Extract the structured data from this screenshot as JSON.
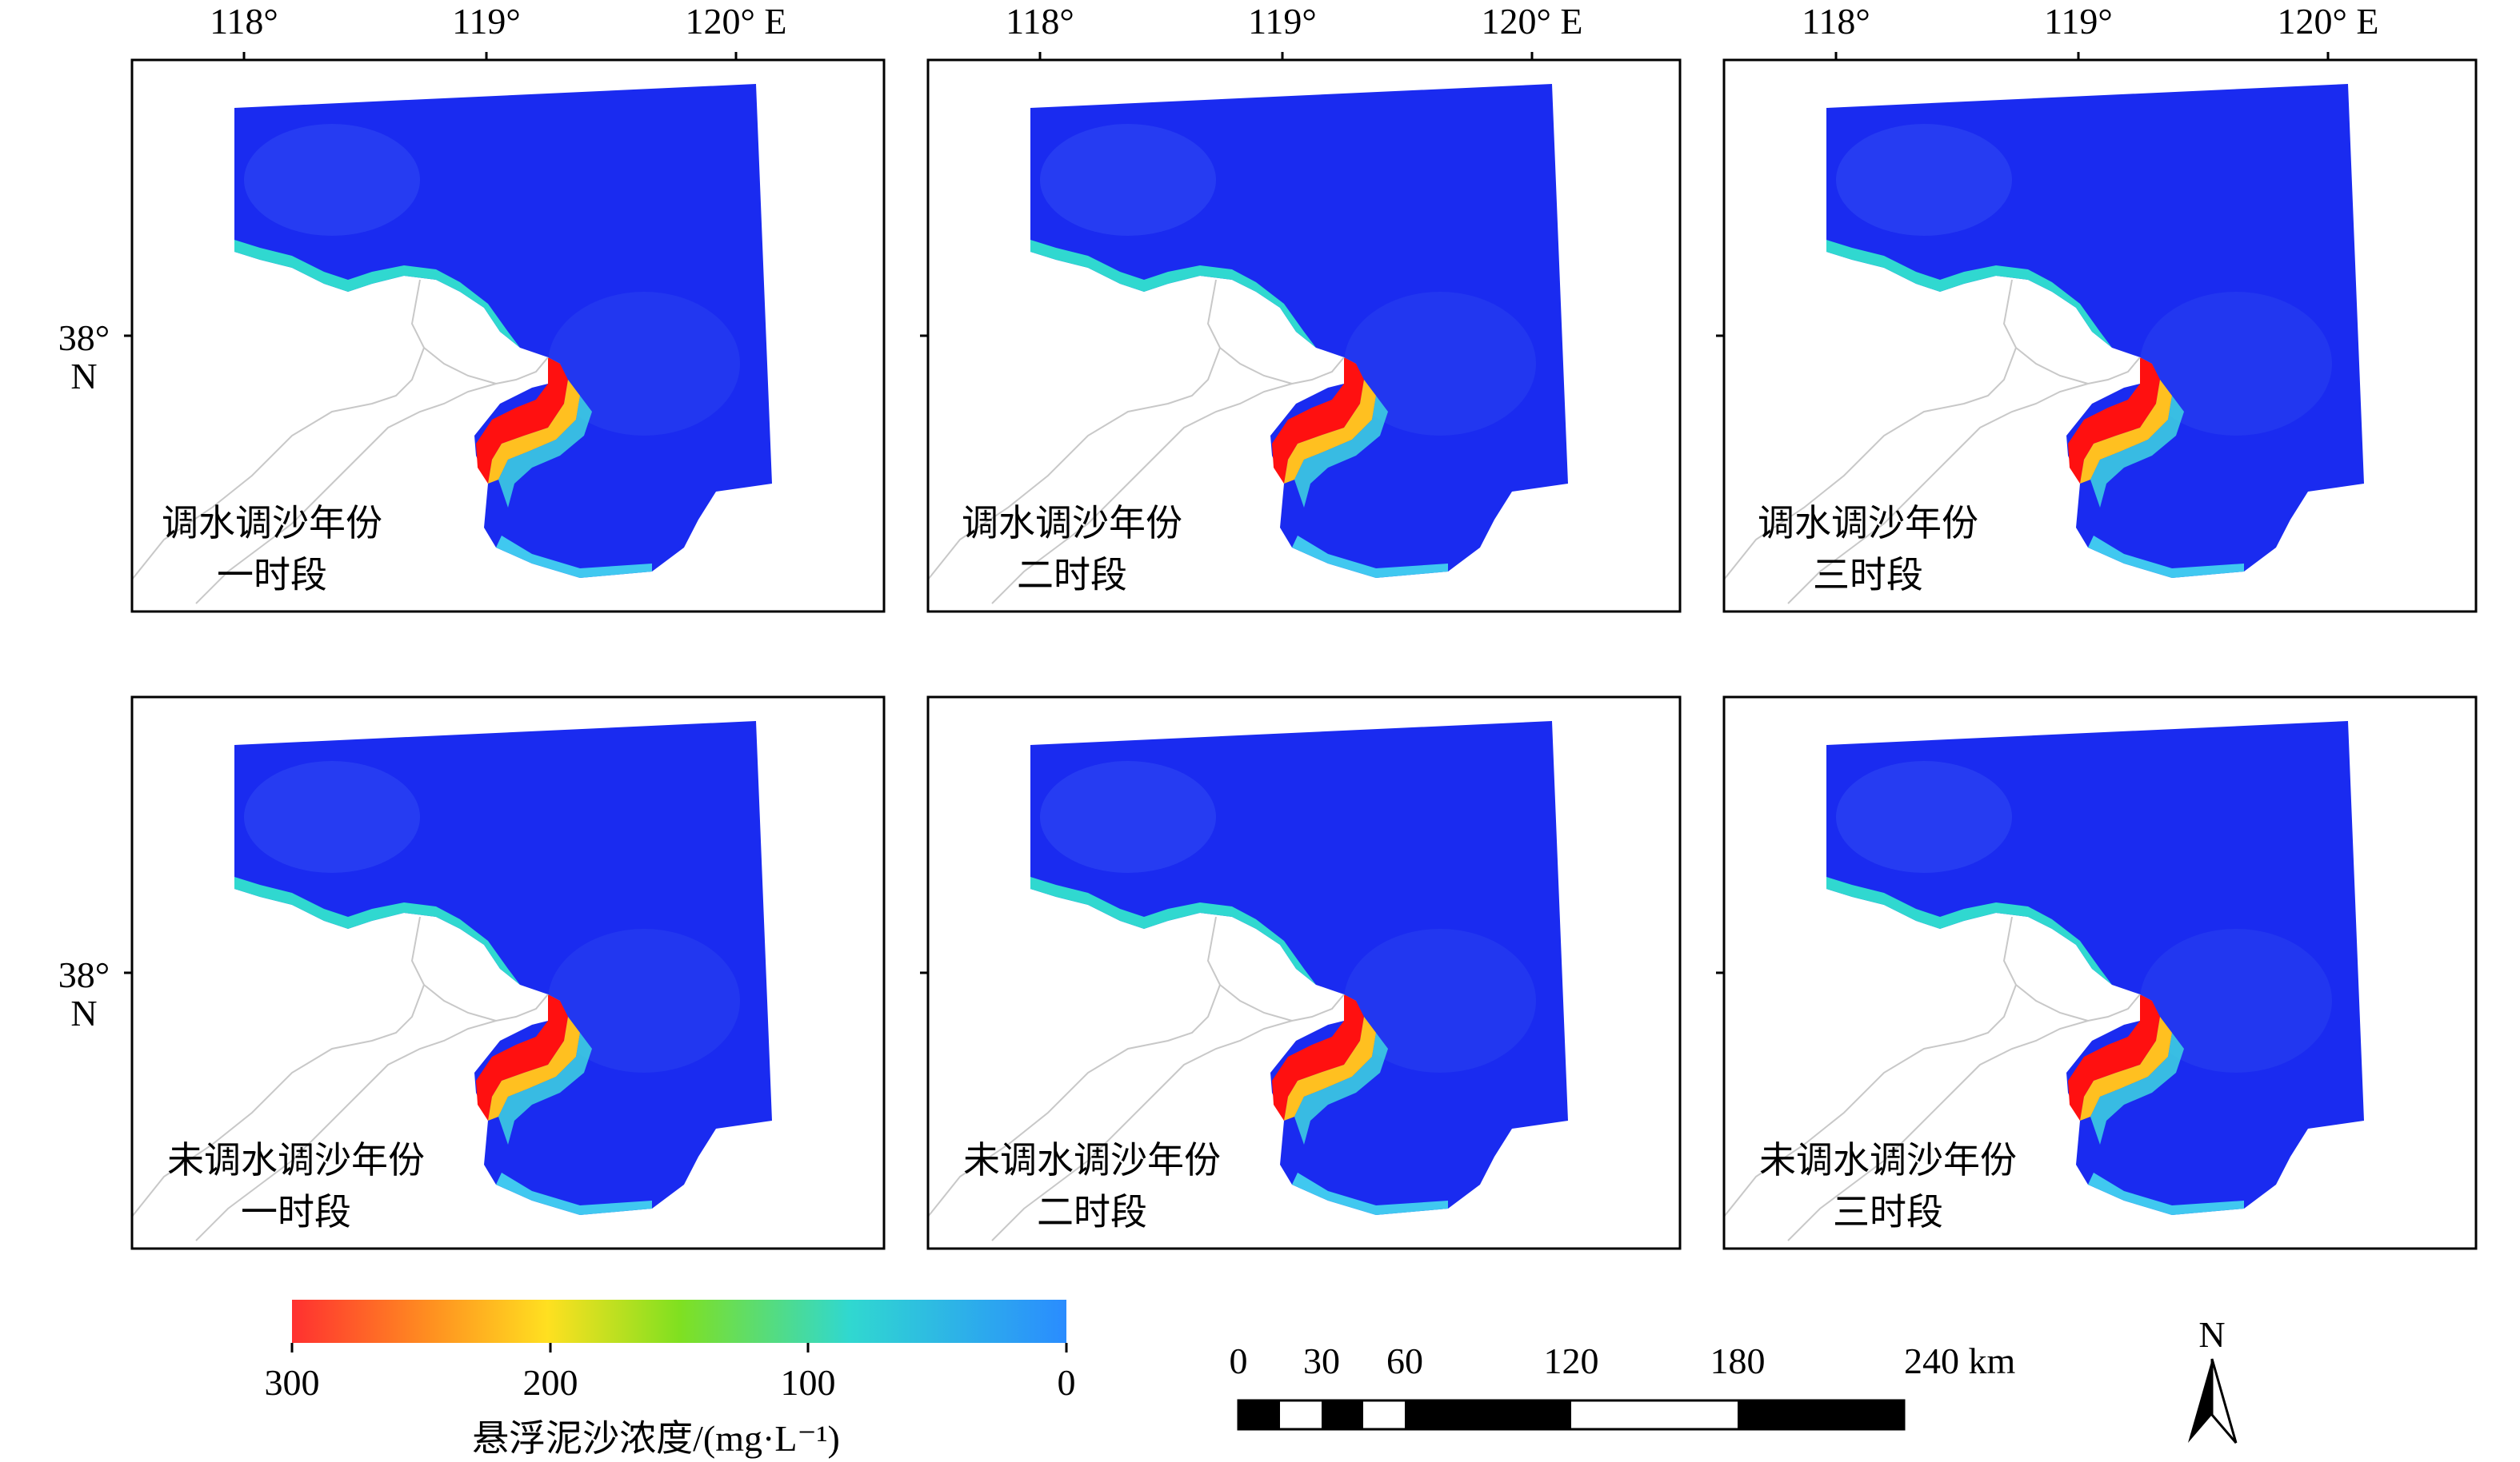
{
  "axes": {
    "lon_ticks": [
      "118°",
      "119°",
      "120° E"
    ],
    "lat_tick": "38°",
    "lat_hemisphere": "N"
  },
  "panels": [
    {
      "line1": "调水调沙年份",
      "line2": "一时段"
    },
    {
      "line1": "调水调沙年份",
      "line2": "二时段"
    },
    {
      "line1": "调水调沙年份",
      "line2": "三时段"
    },
    {
      "line1": "未调水调沙年份",
      "line2": "一时段"
    },
    {
      "line1": "未调水调沙年份",
      "line2": "二时段"
    },
    {
      "line1": "未调水调沙年份",
      "line2": "三时段"
    }
  ],
  "colorbar": {
    "ticks": [
      "300",
      "200",
      "100",
      "0"
    ],
    "title": "悬浮泥沙浓度/(mg·L⁻¹)",
    "colors": [
      "#ff3030",
      "#ff9020",
      "#ffe020",
      "#80e020",
      "#30d8d0",
      "#2a8cff"
    ]
  },
  "scalebar": {
    "labels": [
      "0",
      "30",
      "60",
      "120",
      "180",
      "240 km"
    ]
  },
  "north_arrow": {
    "label": "N"
  },
  "colors": {
    "water": "#1a2bf0",
    "coast": "#c8c8c8",
    "frame": "#000000"
  }
}
